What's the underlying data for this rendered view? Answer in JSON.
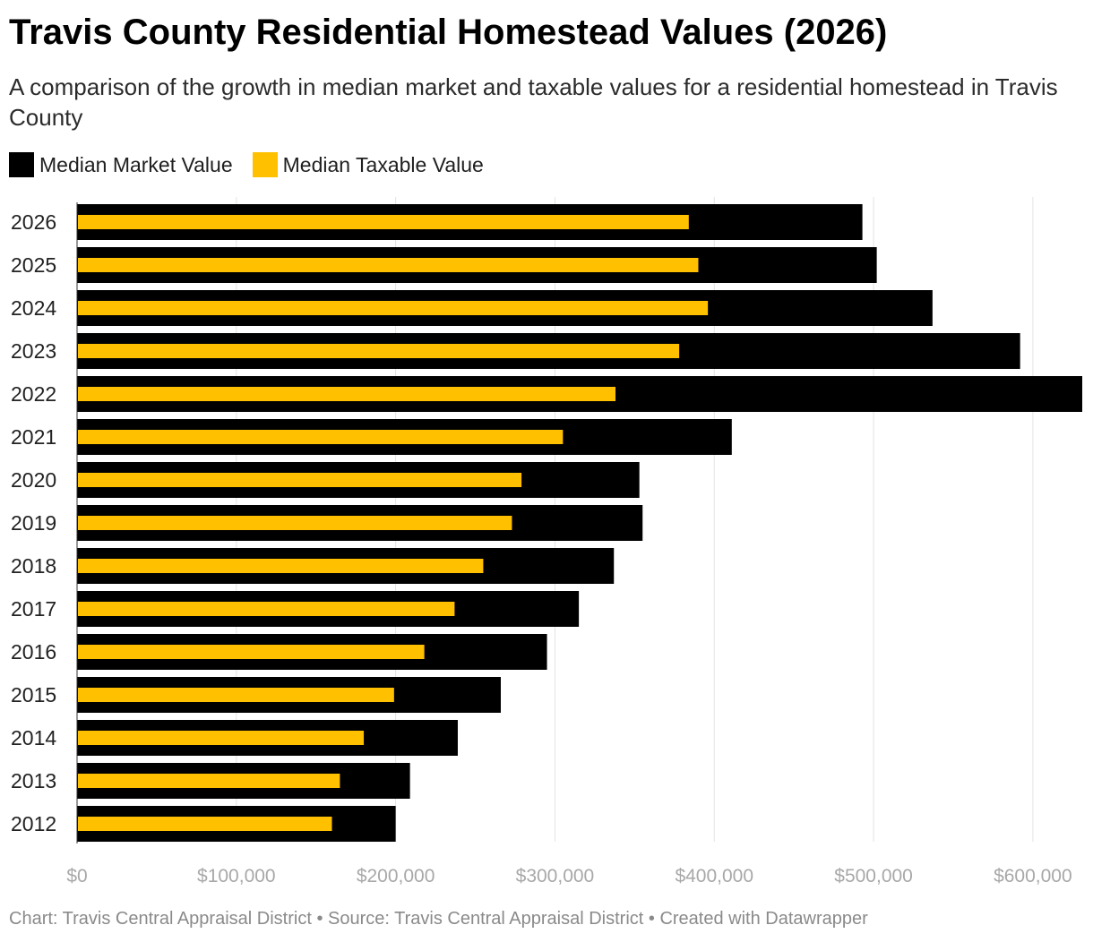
{
  "title": "Travis County Residential Homestead Values (2026)",
  "subtitle": "A comparison of the growth in median market and taxable values for a residential homestead in Travis County",
  "legend": [
    {
      "label": "Median Market Value",
      "color": "#000000"
    },
    {
      "label": "Median Taxable Value",
      "color": "#ffc000"
    }
  ],
  "footer": "Chart: Travis Central Appraisal District • Source: Travis Central Appraisal District • Created with Datawrapper",
  "chart_data": {
    "type": "bar",
    "orientation": "horizontal",
    "categories": [
      "2026",
      "2025",
      "2024",
      "2023",
      "2022",
      "2021",
      "2020",
      "2019",
      "2018",
      "2017",
      "2016",
      "2015",
      "2014",
      "2013",
      "2012"
    ],
    "series": [
      {
        "name": "Median Market Value",
        "color": "#000000",
        "values": [
          493000,
          502000,
          537000,
          592000,
          631000,
          411000,
          353000,
          355000,
          337000,
          315000,
          295000,
          266000,
          239000,
          209000,
          200000
        ]
      },
      {
        "name": "Median Taxable Value",
        "color": "#ffc000",
        "values": [
          384000,
          390000,
          396000,
          378000,
          338000,
          305000,
          279000,
          273000,
          255000,
          237000,
          218000,
          199000,
          180000,
          165000,
          160000
        ]
      }
    ],
    "xlim": [
      0,
      631000
    ],
    "x_ticks": [
      0,
      100000,
      200000,
      300000,
      400000,
      500000,
      600000
    ],
    "x_tick_labels": [
      "$0",
      "$100,000",
      "$200,000",
      "$300,000",
      "$400,000",
      "$500,000",
      "$600,000"
    ],
    "grid": true,
    "legend_position": "top-left"
  }
}
